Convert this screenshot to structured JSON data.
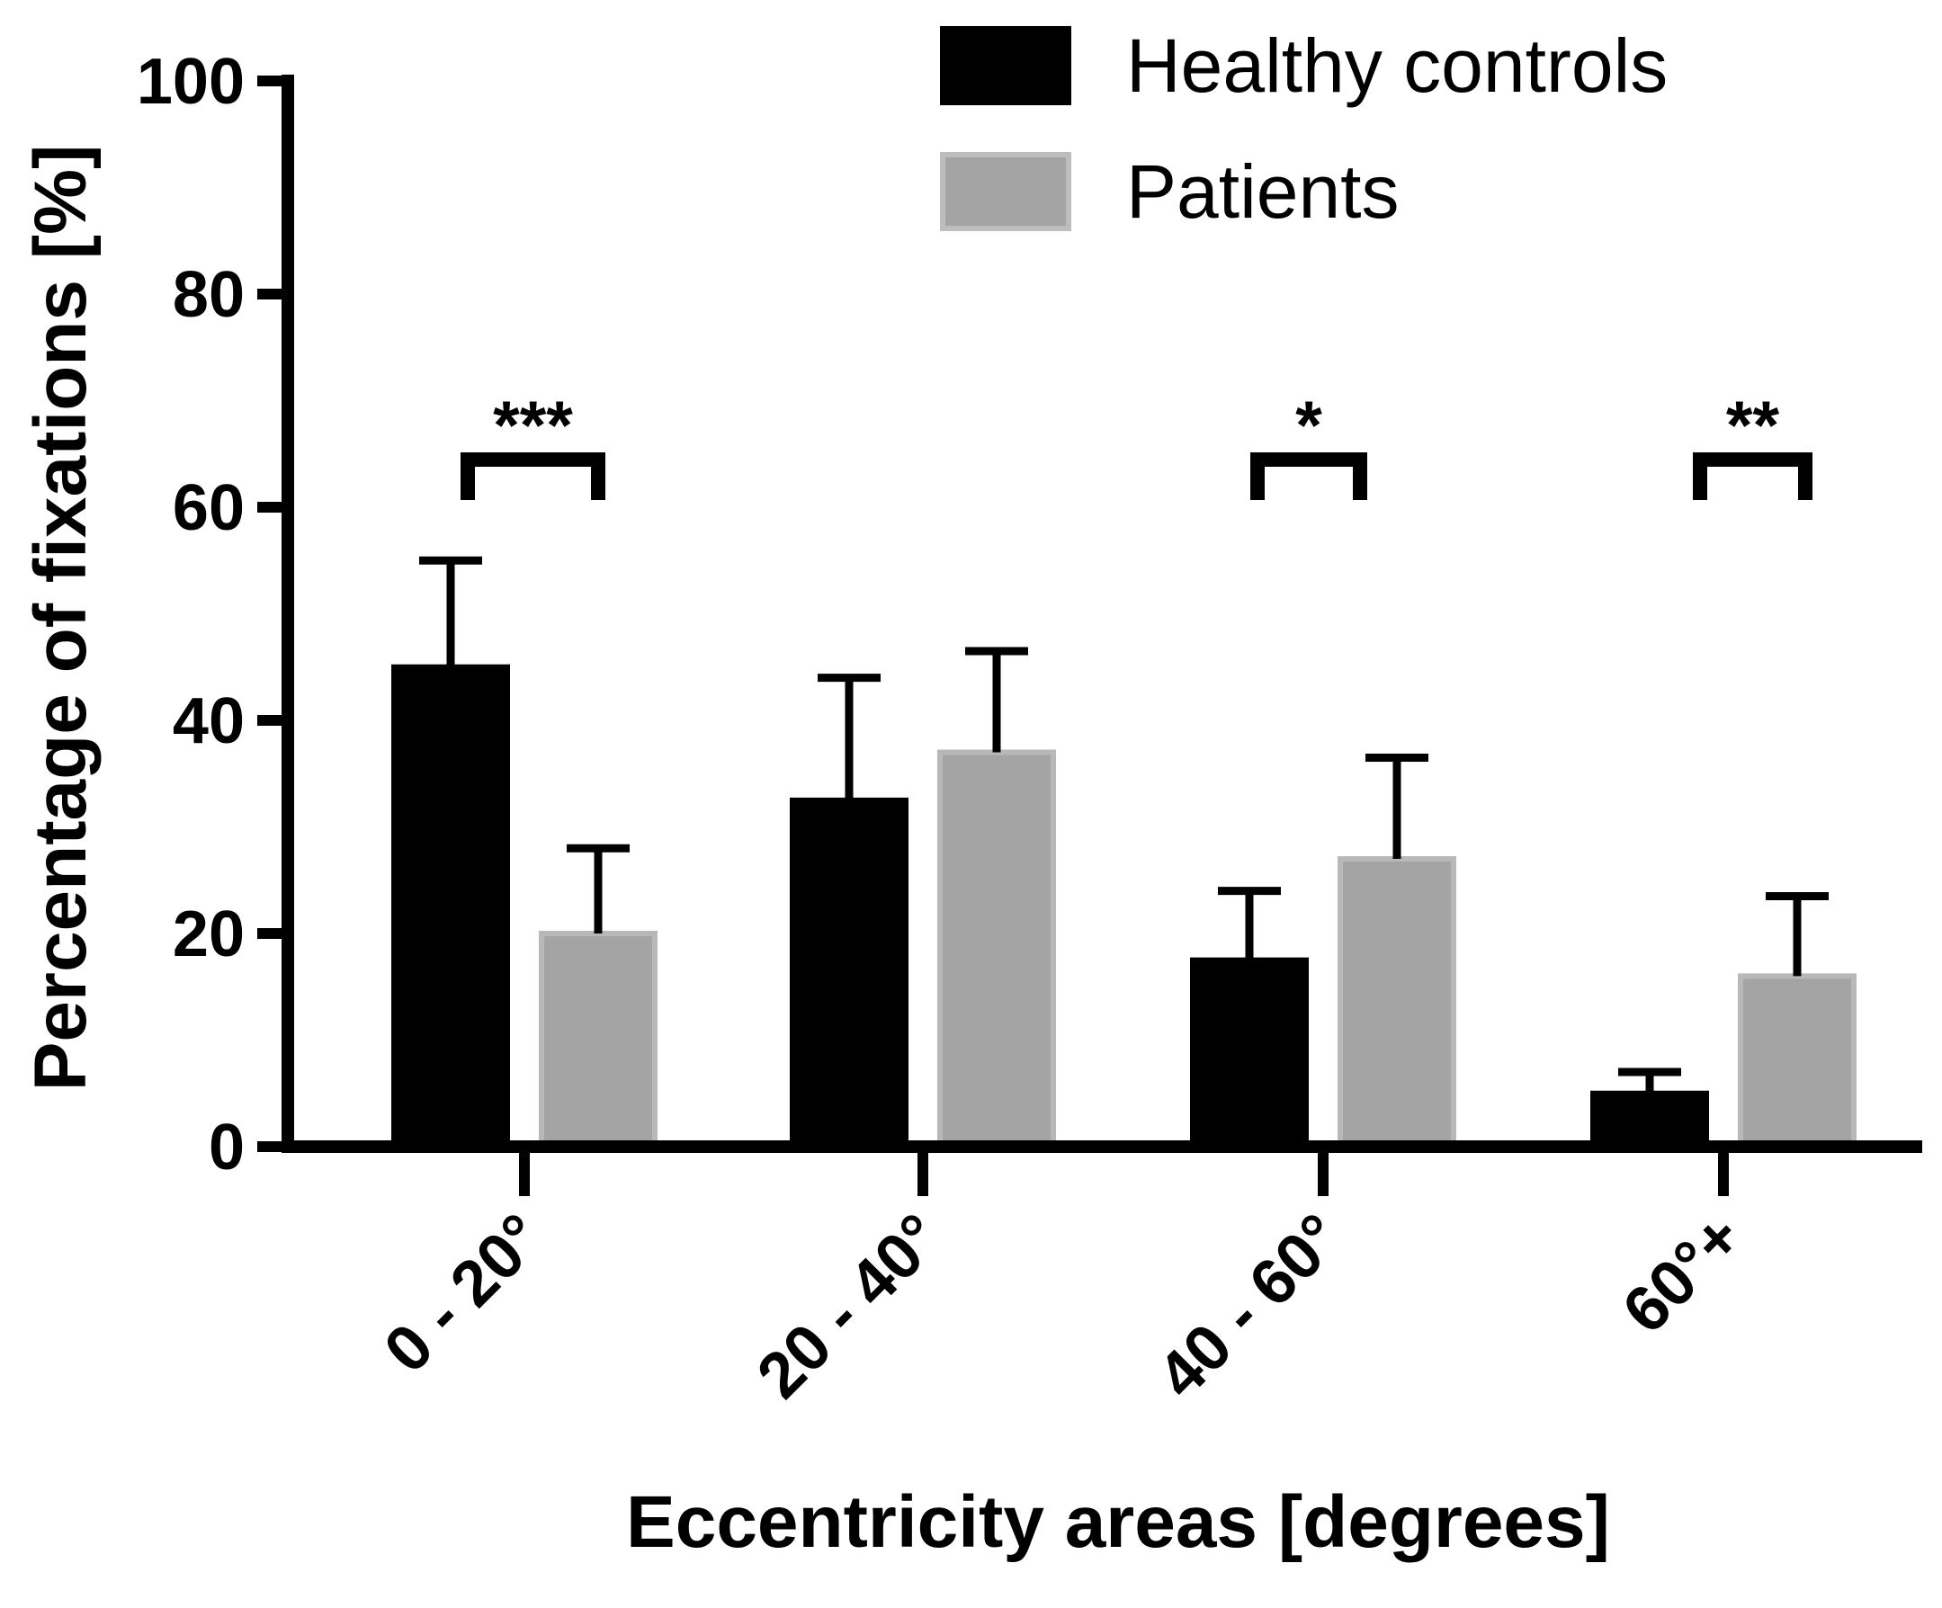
{
  "chart_data": {
    "type": "bar",
    "title": "",
    "xlabel": "Eccentricity areas [degrees]",
    "ylabel": "Percentage of fixations [%]",
    "ylim": [
      0,
      100
    ],
    "yticks": [
      "0",
      "20",
      "40",
      "60",
      "80",
      "100"
    ],
    "categories": [
      "0 - 20°",
      "20 - 40°",
      "40 - 60°",
      "60°+"
    ],
    "series": [
      {
        "name": "Healthy controls",
        "color": "#000000",
        "values": [
          45,
          32.5,
          17.5,
          5
        ],
        "errors": [
          10,
          11.5,
          6.5,
          2
        ]
      },
      {
        "name": "Patients",
        "color": "#a6a6a6",
        "values": [
          20,
          37,
          27,
          16
        ],
        "errors": [
          8,
          9.5,
          9.5,
          7.5
        ]
      }
    ],
    "significance": [
      {
        "category_index": 0,
        "label": "***"
      },
      {
        "category_index": 2,
        "label": "*"
      },
      {
        "category_index": 3,
        "label": "**"
      }
    ],
    "legend_position": "top-right"
  }
}
